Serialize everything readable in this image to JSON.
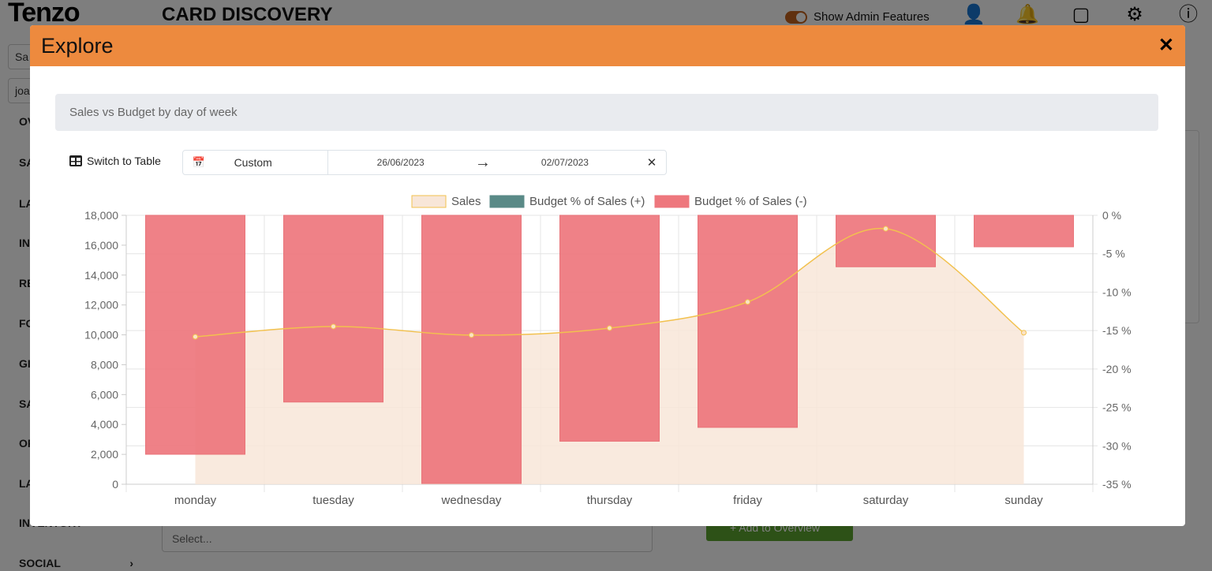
{
  "app": {
    "logo": "Tenzo",
    "title": "CARD DISCOVERY",
    "admin_toggle_label": "Show Admin Features",
    "admin_toggle_on": true,
    "sidebar_inputs": [
      "Sa",
      "joa"
    ],
    "sidebar_items": [
      "OV",
      "SA",
      "LA",
      "IN",
      "RE",
      "FO",
      "GI",
      "SA",
      "OF",
      "LA",
      "INVENTORY",
      "SOCIAL"
    ],
    "select_placeholder": "Select...",
    "add_button": "+ Add to Overview"
  },
  "modal": {
    "title": "Explore",
    "close": "✕",
    "subtitle": "Sales vs Budget by day of week",
    "switch_label": "Switch to Table",
    "preset": "Custom",
    "start_date": "26/06/2023",
    "end_date": "02/07/2023",
    "arrow": "→",
    "clear": "✕"
  },
  "colors": {
    "header": "#ED8A3E",
    "sales_fill": "#F8E6D8",
    "sales_line": "#F2C14E",
    "budget_pos": "#5A8A87",
    "budget_neg": "#EE777D"
  },
  "chart_data": {
    "type": "bar+line",
    "categories": [
      "monday",
      "tuesday",
      "wednesday",
      "thursday",
      "friday",
      "saturday",
      "sunday"
    ],
    "legend": [
      "Sales",
      "Budget % of Sales (+)",
      "Budget % of Sales (-)"
    ],
    "legend_position": "top",
    "series": [
      {
        "name": "Sales",
        "type": "area",
        "axis": "left",
        "values": [
          9870,
          10560,
          9980,
          10450,
          12200,
          17100,
          10140
        ]
      },
      {
        "name": "Budget % of Sales (+)",
        "type": "bar",
        "axis": "right",
        "values": [
          null,
          null,
          null,
          null,
          null,
          null,
          null
        ]
      },
      {
        "name": "Budget % of Sales (-)",
        "type": "bar",
        "axis": "right",
        "values": [
          -31.1,
          -24.3,
          -34.9,
          -29.4,
          -27.6,
          -6.7,
          -4.1
        ]
      }
    ],
    "y_left": {
      "ylim": [
        0,
        18000
      ],
      "ticks": [
        "18,000",
        "16,000",
        "14,000",
        "12,000",
        "10,000",
        "8,000",
        "6,000",
        "4,000",
        "2,000",
        "0"
      ]
    },
    "y_right": {
      "ylim": [
        -35,
        0
      ],
      "ticks": [
        "0 %",
        "-5 %",
        "-10 %",
        "-15 %",
        "-20 %",
        "-25 %",
        "-30 %",
        "-35 %"
      ]
    },
    "grid": true
  }
}
